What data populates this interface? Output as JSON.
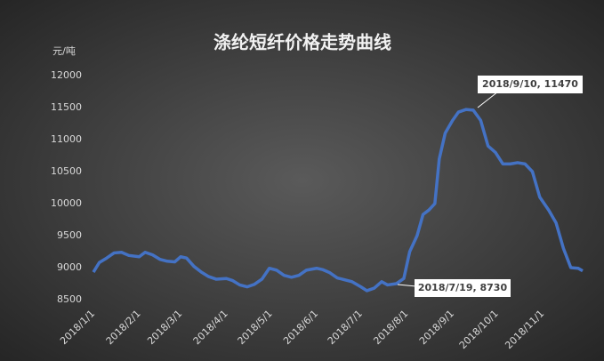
{
  "chart_data": {
    "type": "line",
    "title": "涤纶短纤价格走势曲线",
    "y_label": "元/吨",
    "x": [
      "2018/1/1",
      "2018/1/5",
      "2018/1/10",
      "2018/1/15",
      "2018/1/20",
      "2018/1/25",
      "2018/2/1",
      "2018/2/5",
      "2018/2/10",
      "2018/2/15",
      "2018/2/20",
      "2018/2/25",
      "2018/3/1",
      "2018/3/5",
      "2018/3/10",
      "2018/3/15",
      "2018/3/20",
      "2018/3/25",
      "2018/4/1",
      "2018/4/5",
      "2018/4/10",
      "2018/4/15",
      "2018/4/20",
      "2018/4/25",
      "2018/4/30",
      "2018/5/5",
      "2018/5/10",
      "2018/5/15",
      "2018/5/20",
      "2018/5/25",
      "2018/6/1",
      "2018/6/5",
      "2018/6/10",
      "2018/6/15",
      "2018/6/20",
      "2018/6/25",
      "2018/7/1",
      "2018/7/5",
      "2018/7/10",
      "2018/7/15",
      "2018/7/19",
      "2018/7/25",
      "2018/7/30",
      "2018/8/3",
      "2018/8/8",
      "2018/8/12",
      "2018/8/16",
      "2018/8/20",
      "2018/8/23",
      "2018/8/27",
      "2018/9/1",
      "2018/9/5",
      "2018/9/10",
      "2018/9/15",
      "2018/9/20",
      "2018/9/25",
      "2018/9/30",
      "2018/10/5",
      "2018/10/10",
      "2018/10/15",
      "2018/10/20",
      "2018/10/25",
      "2018/10/30",
      "2018/11/5",
      "2018/11/10",
      "2018/11/15",
      "2018/11/20",
      "2018/11/25",
      "2018/11/28"
    ],
    "series": [
      {
        "name": "涤纶短纤",
        "color": "#4472c4",
        "values": [
          8930,
          9080,
          9150,
          9230,
          9240,
          9190,
          9170,
          9240,
          9200,
          9130,
          9100,
          9090,
          9170,
          9150,
          9020,
          8930,
          8860,
          8820,
          8830,
          8800,
          8730,
          8700,
          8740,
          8820,
          8990,
          8960,
          8880,
          8850,
          8880,
          8960,
          8990,
          8970,
          8920,
          8840,
          8810,
          8780,
          8700,
          8640,
          8680,
          8780,
          8730,
          8750,
          8830,
          9250,
          9500,
          9830,
          9900,
          10000,
          10700,
          11100,
          11300,
          11430,
          11470,
          11460,
          11300,
          10900,
          10800,
          10620,
          10620,
          10640,
          10620,
          10500,
          10100,
          9900,
          9700,
          9300,
          9000,
          8990,
          8950
        ]
      }
    ],
    "xlim": [
      "2018/1/1",
      "2018/11/28"
    ],
    "xticks": [
      "2018/1/1",
      "2018/2/1",
      "2018/3/1",
      "2018/4/1",
      "2018/5/1",
      "2018/6/1",
      "2018/7/1",
      "2018/8/1",
      "2018/9/1",
      "2018/10/1",
      "2018/11/1"
    ],
    "ylim": [
      8500,
      12000
    ],
    "yticks": [
      8500,
      9000,
      9500,
      10000,
      10500,
      11000,
      11500,
      12000
    ],
    "grid": false,
    "annotations": [
      "2018/9/10, 11470",
      "2018/7/19, 8730"
    ]
  }
}
